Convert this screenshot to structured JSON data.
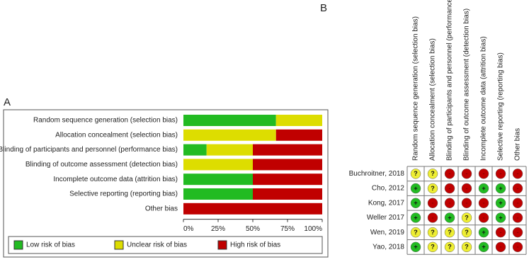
{
  "panel_labels": [
    "A",
    "B"
  ],
  "chart_data": {
    "type": "stacked-bar-horizontal",
    "categories": [
      "Random sequence generation (selection bias)",
      "Allocation concealment (selection bias)",
      "Blinding of participants and personnel (performance bias)",
      "Blinding of outcome assessment (detection bias)",
      "Incomplete outcome data (attrition bias)",
      "Selective reporting (reporting bias)",
      "Other bias"
    ],
    "series": [
      {
        "name": "Low risk of bias",
        "color": "#22bb22",
        "values": [
          66.7,
          0,
          16.7,
          0,
          50,
          50,
          0
        ]
      },
      {
        "name": "Unclear risk of bias",
        "color": "#dddd00",
        "values": [
          33.3,
          66.7,
          33.3,
          50,
          0,
          0,
          0
        ]
      },
      {
        "name": "High risk of bias",
        "color": "#c00000",
        "values": [
          0,
          33.3,
          50,
          50,
          50,
          50,
          100
        ]
      }
    ],
    "xlim": [
      0,
      100
    ],
    "xticks": [
      {
        "value": 0,
        "label": "0%"
      },
      {
        "value": 25,
        "label": "25%"
      },
      {
        "value": 50,
        "label": "50%"
      },
      {
        "value": 75,
        "label": "75%"
      },
      {
        "value": 100,
        "label": "100%"
      }
    ]
  },
  "summary_table": {
    "columns": [
      "Random sequence generation (selection bias)",
      "Allocation concealment (selection bias)",
      "Blinding of participants and personnel (performance bias)",
      "Blinding of outcome assessment (detection bias)",
      "Incomplete outcome data (attrition bias)",
      "Selective reporting (reporting bias)",
      "Other bias"
    ],
    "rows": [
      {
        "study": "Buchroitner, 2018",
        "judgements": [
          "?",
          "?",
          "-",
          "-",
          "-",
          "-",
          "-"
        ]
      },
      {
        "study": "Cho, 2012",
        "judgements": [
          "+",
          "?",
          "-",
          "-",
          "+",
          "+",
          "-"
        ]
      },
      {
        "study": "Kong, 2017",
        "judgements": [
          "+",
          "-",
          "-",
          "-",
          "-",
          "+",
          "-"
        ]
      },
      {
        "study": "Weller 2017",
        "judgements": [
          "+",
          "-",
          "+",
          "?",
          "-",
          "+",
          "-"
        ]
      },
      {
        "study": "Wen, 2019",
        "judgements": [
          "?",
          "?",
          "?",
          "?",
          "+",
          "-",
          "-"
        ]
      },
      {
        "study": "Yao, 2018",
        "judgements": [
          "+",
          "?",
          "?",
          "?",
          "+",
          "-",
          "-"
        ]
      }
    ]
  }
}
